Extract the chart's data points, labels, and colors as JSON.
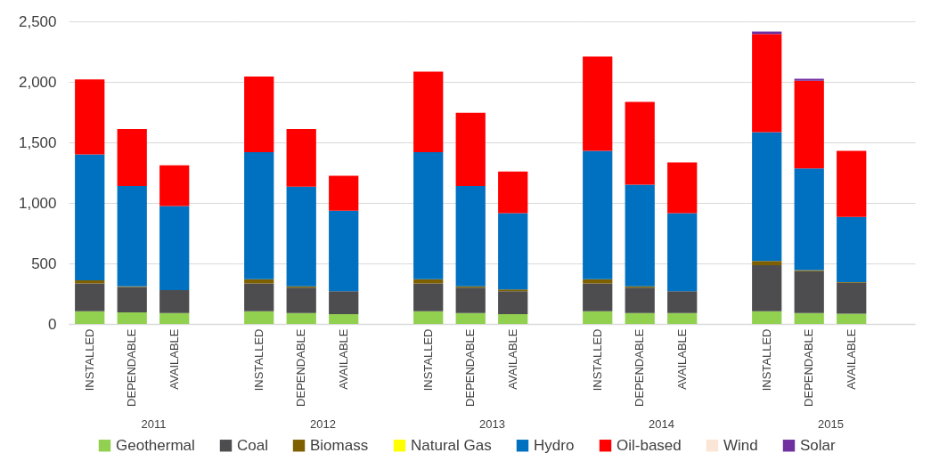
{
  "chart_data": [
    {
      "type": "bar",
      "stacked": true,
      "xlabel": "2011",
      "categories": [
        "INSTALLED",
        "DEPENDABLE",
        "AVAILABLE"
      ],
      "ylim": [
        0,
        2500
      ],
      "yticks": [
        0,
        500,
        {
          "value": 1000,
          "label": "1,000"
        },
        {
          "value": 1500,
          "label": "1,500"
        },
        {
          "value": 2000,
          "label": "2,000"
        },
        {
          "value": 2500,
          "label": "2,500"
        }
      ],
      "grid": "y",
      "legend": "bottom",
      "series": [
        {
          "name": "Geothermal",
          "color": "#92d050",
          "values": [
            105,
            95,
            90
          ]
        },
        {
          "name": "Coal",
          "color": "#4d4d4f",
          "values": [
            230,
            210,
            190
          ]
        },
        {
          "name": "Biomass",
          "color": "#7f6000",
          "values": [
            25,
            5,
            null
          ]
        },
        {
          "name": "Natural Gas",
          "color": "#ffff00",
          "values": [
            null,
            null,
            null
          ]
        },
        {
          "name": "Hydro",
          "color": "#0070c0",
          "values": [
            1040,
            830,
            695
          ]
        },
        {
          "name": "Oil-based",
          "color": "#ff0000",
          "values": [
            620,
            470,
            335
          ]
        },
        {
          "name": "Wind",
          "color": "#fbe5d6",
          "values": [
            null,
            null,
            null
          ]
        },
        {
          "name": "Solar",
          "color": "#7030a0",
          "values": [
            null,
            null,
            null
          ]
        }
      ]
    },
    {
      "type": "bar",
      "stacked": true,
      "xlabel": "2012",
      "categories": [
        "INSTALLED",
        "DEPENDABLE",
        "AVAILABLE"
      ],
      "ylim": [
        0,
        2500
      ],
      "yticks": [
        0,
        500,
        1000,
        1500,
        2000,
        2500
      ],
      "grid": "y",
      "tick_labels": "x",
      "series": [
        {
          "color": "#92d050",
          "values": [
            105,
            90,
            80
          ]
        },
        {
          "color": "#4d4d4f",
          "values": [
            230,
            210,
            190
          ]
        },
        {
          "color": "#7f6000",
          "values": [
            35,
            10,
            null
          ]
        },
        {
          "color": "#0070c0",
          "values": [
            1050,
            825,
            665
          ]
        },
        {
          "color": "#ff0000",
          "values": [
            625,
            475,
            290
          ]
        }
      ]
    },
    {
      "type": "bar",
      "stacked": true,
      "xlabel": "2013",
      "categories": [
        "INSTALLED",
        "DEPENDABLE",
        "AVAILABLE"
      ],
      "ylim": [
        0,
        2500
      ],
      "yticks": [
        0,
        500,
        1000,
        1500,
        2000,
        2500
      ],
      "grid": "y",
      "tick_labels": "x",
      "series": [
        {
          "color": "#92d050",
          "values": [
            105,
            90,
            80
          ]
        },
        {
          "color": "#4d4d4f",
          "values": [
            230,
            210,
            190
          ]
        },
        {
          "color": "#7f6000",
          "values": [
            35,
            10,
            15
          ]
        },
        {
          "color": "#0070c0",
          "values": [
            1050,
            830,
            630
          ]
        },
        {
          "color": "#ff0000",
          "values": [
            665,
            605,
            345
          ]
        }
      ]
    },
    {
      "type": "bar",
      "stacked": true,
      "xlabel": "2014",
      "categories": [
        "INSTALLED",
        "DEPENDABLE",
        "AVAILABLE"
      ],
      "ylim": [
        0,
        2500
      ],
      "yticks": [
        0,
        500,
        1000,
        1500,
        2000,
        2500
      ],
      "grid": "y",
      "tick_labels": "x",
      "series": [
        {
          "color": "#92d050",
          "values": [
            105,
            90,
            90
          ]
        },
        {
          "color": "#4d4d4f",
          "values": [
            230,
            210,
            180
          ]
        },
        {
          "color": "#7f6000",
          "values": [
            35,
            10,
            null
          ]
        },
        {
          "color": "#0070c0",
          "values": [
            1060,
            840,
            645
          ]
        },
        {
          "color": "#ff0000",
          "values": [
            780,
            685,
            420
          ]
        }
      ]
    },
    {
      "type": "bar",
      "stacked": true,
      "xlabel": "2015",
      "categories": [
        "INSTALLED",
        "DEPENDABLE",
        "AVAILABLE"
      ],
      "ylim": [
        0,
        2500
      ],
      "yticks": [
        0,
        500,
        1000,
        1500,
        2000,
        2500
      ],
      "grid": "y",
      "tick_labels": "x",
      "series": [
        {
          "color": "#92d050",
          "values": [
            105,
            90,
            85
          ]
        },
        {
          "color": "#4d4d4f",
          "values": [
            380,
            345,
            255
          ]
        },
        {
          "color": "#7f6000",
          "values": [
            35,
            10,
            5
          ]
        },
        {
          "color": "#0070c0",
          "values": [
            1065,
            840,
            540
          ]
        },
        {
          "color": "#ff0000",
          "values": [
            810,
            725,
            545
          ]
        },
        {
          "color": "#7030a0",
          "values": [
            20,
            15,
            null
          ]
        }
      ]
    }
  ]
}
